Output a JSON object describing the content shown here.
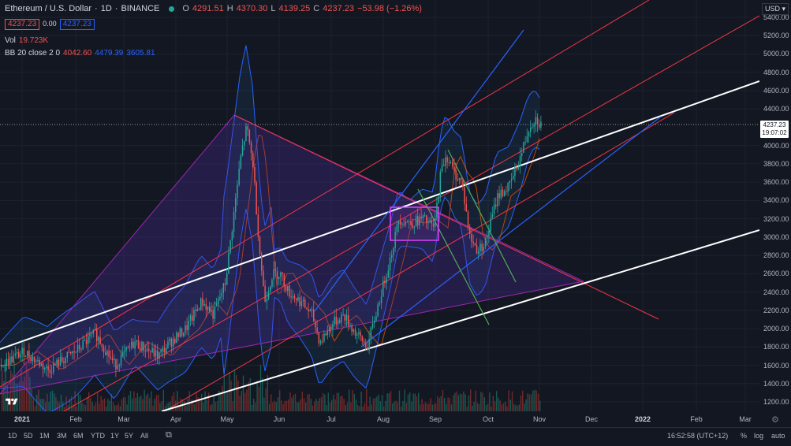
{
  "header": {
    "symbol": "Ethereum / U.S. Dollar",
    "interval": "1D",
    "exchange": "BINANCE",
    "open_key": "O",
    "open": "4291.51",
    "high_key": "H",
    "high": "4370.30",
    "low_key": "L",
    "low": "4139.25",
    "close_key": "C",
    "close": "4237.23",
    "change": "−53.98 (−1.26%)",
    "sell_price": "4237.23",
    "spread": "0.00",
    "buy_price": "4237.23"
  },
  "volume": {
    "label": "Vol",
    "value": "19.723K"
  },
  "bb": {
    "label": "BB 20 close 2 0",
    "basis": "4042.60",
    "upper": "4479.39",
    "lower": "3605.81"
  },
  "price_axis": {
    "currency": "USD",
    "ticks": [
      "5400.00",
      "5200.00",
      "5000.00",
      "4800.00",
      "4600.00",
      "4400.00",
      "4000.00",
      "3800.00",
      "3600.00",
      "3400.00",
      "3200.00",
      "3000.00",
      "2800.00",
      "2600.00",
      "2400.00",
      "2200.00",
      "2000.00",
      "1800.00",
      "1600.00",
      "1400.00",
      "1200.00"
    ],
    "current_price": "4237.23",
    "countdown": "19:07:02"
  },
  "time_axis": {
    "ticks": [
      {
        "label": "2021",
        "bold": true
      },
      {
        "label": "Feb",
        "bold": false
      },
      {
        "label": "Mar",
        "bold": false
      },
      {
        "label": "Apr",
        "bold": false
      },
      {
        "label": "May",
        "bold": false
      },
      {
        "label": "Jun",
        "bold": false
      },
      {
        "label": "Jul",
        "bold": false
      },
      {
        "label": "Aug",
        "bold": false
      },
      {
        "label": "Sep",
        "bold": false
      },
      {
        "label": "Oct",
        "bold": false
      },
      {
        "label": "Nov",
        "bold": false
      },
      {
        "label": "Dec",
        "bold": false
      },
      {
        "label": "2022",
        "bold": true
      },
      {
        "label": "Feb",
        "bold": false
      },
      {
        "label": "Mar",
        "bold": false
      }
    ]
  },
  "bottom_bar": {
    "ranges": [
      "1D",
      "5D",
      "1M",
      "3M",
      "6M",
      "YTD",
      "1Y",
      "5Y",
      "All"
    ],
    "clock": "16:52:58 (UTC+12)",
    "percent": "%",
    "log": "log",
    "auto": "auto"
  },
  "colors": {
    "background": "#131722",
    "up": "#26a69a",
    "down": "#ef5350",
    "bb_band": "#2962ff",
    "channel_red": "#f23645",
    "channel_white": "#ffffff",
    "triangle": "#9c27b0",
    "green_lines": "#4caf50"
  },
  "icons": {
    "compare": "compare-icon",
    "settings": "gear-icon",
    "logo": "tradingview-logo-icon"
  }
}
